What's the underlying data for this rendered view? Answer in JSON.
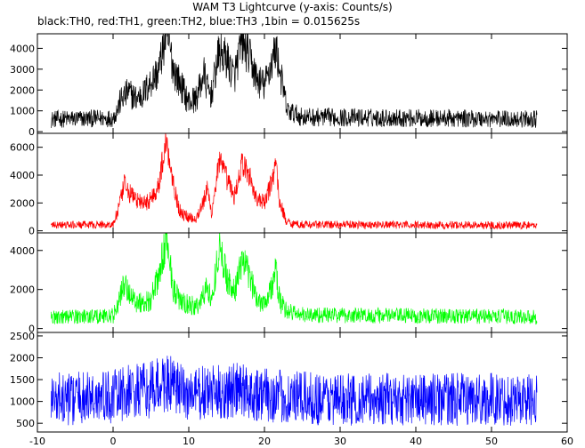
{
  "title": "WAM T3 Lightcurve (y-axis: Counts/s)",
  "subtitle": "black:TH0, red:TH1, green:TH2, blue:TH3 ,1bin = 0.015625s",
  "chart_data": {
    "type": "line",
    "xlim": [
      -10,
      60
    ],
    "x_ticks": [
      -10,
      0,
      10,
      20,
      30,
      40,
      50,
      60
    ],
    "data_range": [
      -8.2,
      56
    ],
    "series": [
      {
        "name": "TH0",
        "color": "#000000",
        "ylim": [
          -80,
          4700
        ],
        "y_ticks": [
          0,
          1000,
          2000,
          3000,
          4000
        ],
        "baseline": 600,
        "noise": 260,
        "keypoints": [
          [
            -8,
            600
          ],
          [
            0,
            650
          ],
          [
            0.5,
            1000
          ],
          [
            1,
            1500
          ],
          [
            2,
            1900
          ],
          [
            3,
            1600
          ],
          [
            4,
            1800
          ],
          [
            5,
            2400
          ],
          [
            6,
            2900
          ],
          [
            7,
            4700
          ],
          [
            7.5,
            4000
          ],
          [
            8,
            3000
          ],
          [
            9,
            2200
          ],
          [
            10,
            1400
          ],
          [
            11,
            1600
          ],
          [
            12,
            2800
          ],
          [
            12.5,
            2000
          ],
          [
            13,
            1800
          ],
          [
            14,
            3800
          ],
          [
            15,
            3500
          ],
          [
            16,
            2600
          ],
          [
            17,
            4300
          ],
          [
            18,
            3600
          ],
          [
            19,
            2500
          ],
          [
            20,
            2200
          ],
          [
            21,
            3400
          ],
          [
            21.5,
            4000
          ],
          [
            22,
            3000
          ],
          [
            23,
            1000
          ],
          [
            25,
            700
          ],
          [
            56,
            600
          ]
        ]
      },
      {
        "name": "TH1",
        "color": "#ff0000",
        "ylim": [
          -150,
          7000
        ],
        "y_ticks": [
          0,
          2000,
          4000,
          6000
        ],
        "baseline": 400,
        "noise": 170,
        "keypoints": [
          [
            -8,
            400
          ],
          [
            0,
            450
          ],
          [
            0.5,
            1200
          ],
          [
            1,
            2200
          ],
          [
            1.5,
            3300
          ],
          [
            2,
            2800
          ],
          [
            3,
            2300
          ],
          [
            4,
            1900
          ],
          [
            5,
            2300
          ],
          [
            6,
            3200
          ],
          [
            7,
            6500
          ],
          [
            7.5,
            5000
          ],
          [
            8,
            3500
          ],
          [
            8.5,
            2000
          ],
          [
            9,
            1200
          ],
          [
            10,
            1000
          ],
          [
            11,
            900
          ],
          [
            12,
            2200
          ],
          [
            12.5,
            3000
          ],
          [
            13,
            1200
          ],
          [
            14,
            5000
          ],
          [
            15,
            3800
          ],
          [
            16,
            2400
          ],
          [
            17,
            4800
          ],
          [
            18,
            4000
          ],
          [
            19,
            2200
          ],
          [
            20,
            2000
          ],
          [
            21,
            3600
          ],
          [
            21.5,
            5000
          ],
          [
            22,
            2000
          ],
          [
            23,
            600
          ],
          [
            25,
            450
          ],
          [
            56,
            400
          ]
        ]
      },
      {
        "name": "TH2",
        "color": "#00ff00",
        "ylim": [
          -200,
          4900
        ],
        "y_ticks": [
          0,
          2000,
          4000
        ],
        "baseline": 600,
        "noise": 240,
        "keypoints": [
          [
            -8,
            600
          ],
          [
            0,
            650
          ],
          [
            0.5,
            1100
          ],
          [
            1,
            1700
          ],
          [
            1.5,
            2300
          ],
          [
            2,
            1900
          ],
          [
            3,
            1400
          ],
          [
            4,
            1300
          ],
          [
            5,
            1500
          ],
          [
            6,
            2600
          ],
          [
            7,
            4500
          ],
          [
            7.5,
            3500
          ],
          [
            8,
            2000
          ],
          [
            9,
            1300
          ],
          [
            10,
            1200
          ],
          [
            11,
            1100
          ],
          [
            12,
            1700
          ],
          [
            12.5,
            2300
          ],
          [
            13,
            1300
          ],
          [
            14,
            4200
          ],
          [
            15,
            2700
          ],
          [
            16,
            1800
          ],
          [
            17,
            3500
          ],
          [
            18,
            2700
          ],
          [
            19,
            1500
          ],
          [
            20,
            1400
          ],
          [
            21,
            2100
          ],
          [
            21.5,
            3000
          ],
          [
            22,
            1400
          ],
          [
            23,
            900
          ],
          [
            25,
            700
          ],
          [
            56,
            600
          ]
        ]
      },
      {
        "name": "TH3",
        "color": "#0000ff",
        "ylim": [
          300,
          2580
        ],
        "y_ticks": [
          500,
          1000,
          1500,
          2000,
          2500
        ],
        "baseline": 1050,
        "noise": 380,
        "keypoints": [
          [
            -8,
            1050
          ],
          [
            0,
            1100
          ],
          [
            2,
            1200
          ],
          [
            5,
            1250
          ],
          [
            7,
            1450
          ],
          [
            8,
            1300
          ],
          [
            10,
            1150
          ],
          [
            14,
            1200
          ],
          [
            17,
            1250
          ],
          [
            20,
            1150
          ],
          [
            23,
            1080
          ],
          [
            30,
            1050
          ],
          [
            56,
            1050
          ]
        ]
      }
    ]
  }
}
